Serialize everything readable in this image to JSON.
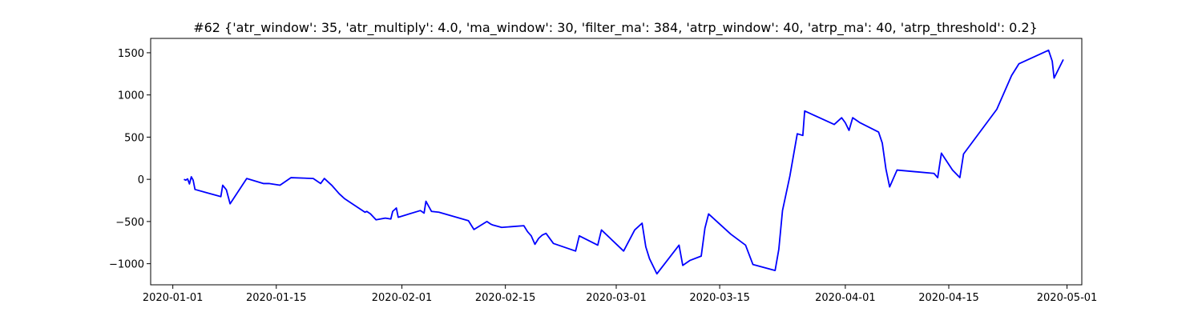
{
  "chart_data": {
    "type": "line",
    "title": "#62 {'atr_window': 35, 'atr_multiply': 4.0, 'ma_window': 30, 'filter_ma': 384, 'atrp_window': 40, 'atrp_ma': 40, 'atrp_threshold': 0.2}",
    "xlabel": "",
    "ylabel": "",
    "x_type": "date",
    "xlim": [
      "2019-12-29",
      "2020-05-03"
    ],
    "ylim": [
      -1250,
      1670
    ],
    "grid": false,
    "line_color": "#0000ff",
    "x_ticks": [
      "2020-01-01",
      "2020-01-15",
      "2020-02-01",
      "2020-02-15",
      "2020-03-01",
      "2020-03-15",
      "2020-04-01",
      "2020-04-15",
      "2020-05-01"
    ],
    "x_tick_labels": [
      "2020-01-01",
      "2020-01-15",
      "2020-02-01",
      "2020-02-15",
      "2020-03-01",
      "2020-03-15",
      "2020-04-01",
      "2020-04-15",
      "2020-05-01"
    ],
    "y_ticks": [
      -1000,
      -500,
      0,
      500,
      1000,
      1500
    ],
    "y_tick_labels": [
      "−1000",
      "−500",
      "0",
      "500",
      "1000",
      "1500"
    ],
    "series": [
      {
        "name": "",
        "x": [
          "2020-01-02 12:00",
          "2020-01-02 18:00",
          "2020-01-03 00:00",
          "2020-01-03 06:00",
          "2020-01-03 12:00",
          "2020-01-03 18:00",
          "2020-01-04 00:00",
          "2020-01-07 12:00",
          "2020-01-07 18:00",
          "2020-01-08 06:00",
          "2020-01-08 18:00",
          "2020-01-11 00:00",
          "2020-01-13 06:00",
          "2020-01-14 00:00",
          "2020-01-15 12:00",
          "2020-01-16 00:00",
          "2020-01-17 00:00",
          "2020-01-20 00:00",
          "2020-01-21 00:00",
          "2020-01-21 12:00",
          "2020-01-22 12:00",
          "2020-01-23 12:00",
          "2020-01-24 06:00",
          "2020-01-27 00:00",
          "2020-01-27 06:00",
          "2020-01-27 18:00",
          "2020-01-28 12:00",
          "2020-01-29 18:00",
          "2020-01-30 12:00",
          "2020-01-30 18:00",
          "2020-01-31 06:00",
          "2020-01-31 12:00",
          "2020-02-03 12:00",
          "2020-02-04 00:00",
          "2020-02-04 06:00",
          "2020-02-05 00:00",
          "2020-02-06 00:00",
          "2020-02-10 00:00",
          "2020-02-10 12:00",
          "2020-02-10 18:00",
          "2020-02-12 12:00",
          "2020-02-13 00:00",
          "2020-02-13 06:00",
          "2020-02-14 12:00",
          "2020-02-17 12:00",
          "2020-02-18 00:00",
          "2020-02-18 12:00",
          "2020-02-19 00:00",
          "2020-02-19 12:00",
          "2020-02-20 00:00",
          "2020-02-20 12:00",
          "2020-02-21 12:00",
          "2020-02-24 12:00",
          "2020-02-25 00:00",
          "2020-02-27 12:00",
          "2020-02-28 00:00",
          "2020-03-02 00:00",
          "2020-03-03 12:00",
          "2020-03-04 12:00",
          "2020-03-05 00:00",
          "2020-03-05 12:00",
          "2020-03-06 12:00",
          "2020-03-09 12:00",
          "2020-03-10 00:00",
          "2020-03-11 00:00",
          "2020-03-12 12:00",
          "2020-03-13 00:00",
          "2020-03-13 12:00",
          "2020-03-16 12:00",
          "2020-03-18 12:00",
          "2020-03-19 12:00",
          "2020-03-22 12:00",
          "2020-03-23 00:00",
          "2020-03-23 12:00",
          "2020-03-24 12:00",
          "2020-03-25 12:00",
          "2020-03-26 06:00",
          "2020-03-26 12:00",
          "2020-03-30 12:00",
          "2020-03-31 12:00",
          "2020-04-01 00:00",
          "2020-04-01 12:00",
          "2020-04-02 00:00",
          "2020-04-03 00:00",
          "2020-04-05 12:00",
          "2020-04-06 00:00",
          "2020-04-06 12:00",
          "2020-04-07 00:00",
          "2020-04-08 00:00",
          "2020-04-13 00:00",
          "2020-04-13 12:00",
          "2020-04-14 00:00",
          "2020-04-15 12:00",
          "2020-04-16 12:00",
          "2020-04-17 00:00",
          "2020-04-21 12:00",
          "2020-04-23 12:00",
          "2020-04-24 12:00",
          "2020-04-28 12:00",
          "2020-04-29 00:00",
          "2020-04-29 06:00",
          "2020-04-30 12:00"
        ],
        "values": [
          0,
          -10,
          5,
          -55,
          30,
          -10,
          -120,
          -205,
          -70,
          -125,
          -290,
          10,
          -50,
          -50,
          -70,
          -40,
          20,
          10,
          -50,
          10,
          -70,
          -170,
          -230,
          -390,
          -380,
          -410,
          -480,
          -460,
          -470,
          -380,
          -340,
          -450,
          -370,
          -400,
          -260,
          -380,
          -390,
          -490,
          -560,
          -595,
          -500,
          -530,
          -540,
          -570,
          -550,
          -620,
          -670,
          -770,
          -700,
          -660,
          -640,
          -760,
          -850,
          -670,
          -780,
          -600,
          -850,
          -600,
          -520,
          -800,
          -940,
          -1120,
          -780,
          -1020,
          -960,
          -910,
          -580,
          -410,
          -650,
          -780,
          -1010,
          -1080,
          -830,
          -370,
          40,
          540,
          520,
          810,
          650,
          730,
          670,
          580,
          730,
          670,
          560,
          430,
          120,
          -90,
          110,
          70,
          20,
          310,
          110,
          20,
          300,
          830,
          1230,
          1370,
          1530,
          1400,
          1200,
          1420
        ]
      }
    ]
  }
}
